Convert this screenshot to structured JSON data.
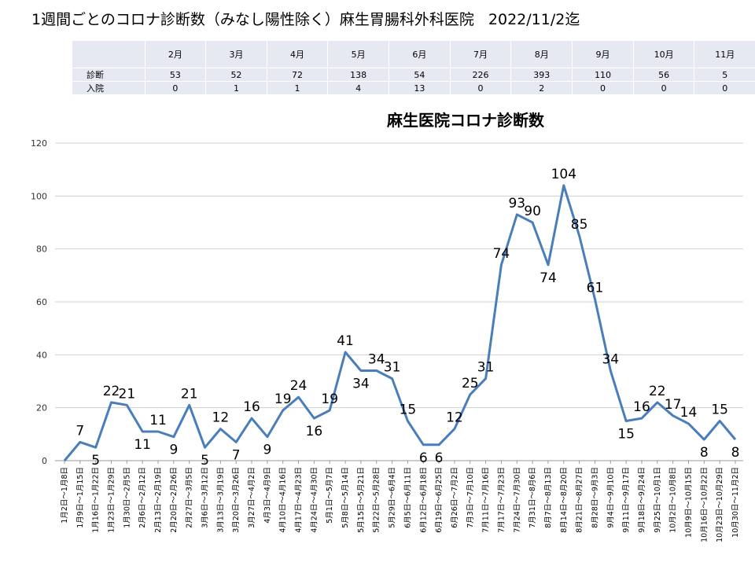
{
  "header": {
    "title": "1週間ごとのコロナ診断数（みなし陽性除く）麻生胃腸科外科医院",
    "date": "2022/11/2迄"
  },
  "summary_table": {
    "months": [
      "2月",
      "3月",
      "4月",
      "5月",
      "6月",
      "7月",
      "8月",
      "9月",
      "10月",
      "11月"
    ],
    "rows": [
      {
        "label": "診断",
        "values": [
          "53",
          "52",
          "72",
          "138",
          "54",
          "226",
          "393",
          "110",
          "56",
          "5"
        ]
      },
      {
        "label": "入院",
        "values": [
          "0",
          "1",
          "1",
          "4",
          "13",
          "0",
          "2",
          "0",
          "0",
          "0"
        ]
      }
    ]
  },
  "chart_data": {
    "type": "line",
    "title": "麻生医院コロナ診断数",
    "ylim": [
      0,
      120
    ],
    "yticks": [
      0,
      20,
      40,
      60,
      80,
      100,
      120
    ],
    "grid": "horizontal",
    "line_color": "#4a7ebb",
    "categories": [
      "1月2日～1月8日",
      "1月9日～1月15日",
      "1月16日～1月22日",
      "1月23日～1月29日",
      "1月30日～2月5日",
      "2月6日～2月12日",
      "2月13日～2月19日",
      "2月20日～2月26日",
      "2月27日～3月5日",
      "3月6日～3月12日",
      "3月13日～3月19日",
      "3月20日～3月26日",
      "3月27日～4月2日",
      "4月3日～4月9日",
      "4月10日～4月16日",
      "4月17日～4月23日",
      "4月24日～4月30日",
      "5月1日～5月7日",
      "5月8日～5月14日",
      "5月15日～5月21日",
      "5月22日～5月28日",
      "5月29日～6月4日",
      "6月5日～6月11日",
      "6月12日～6月18日",
      "6月19日～6月25日",
      "6月26日～7月2日",
      "7月3日～7月10日",
      "7月11日～7月16日",
      "7月17日～7月23日",
      "7月24日～7月30日",
      "7月31日～8月6日",
      "8月7日～8月13日",
      "8月14日～8月20日",
      "8月21日～8月27日",
      "8月28日～9月3日",
      "9月4日～9月10日",
      "9月11日～9月17日",
      "9月18日～9月24日",
      "9月25日～10月1日",
      "10月2日～10月8日",
      "10月9日～10月15日",
      "10月16日～10月22日",
      "10月23日～10月29日",
      "10月30日～11月2日"
    ],
    "values": [
      0,
      7,
      5,
      22,
      21,
      11,
      11,
      9,
      21,
      5,
      12,
      7,
      16,
      9,
      19,
      24,
      16,
      19,
      41,
      34,
      34,
      31,
      15,
      6,
      6,
      12,
      25,
      31,
      74,
      93,
      90,
      74,
      104,
      85,
      61,
      34,
      15,
      16,
      22,
      17,
      14,
      8,
      15,
      8
    ],
    "data_labels": [
      "",
      "7",
      "5",
      "22",
      "21",
      "11",
      "11",
      "9",
      "21",
      "5",
      "12",
      "7",
      "16",
      "9",
      "19",
      "24",
      "16",
      "19",
      "41",
      "34",
      "34",
      "31",
      "15",
      "6",
      "6",
      "12",
      "25",
      "31",
      "74",
      "93",
      "90",
      "74",
      "104",
      "85",
      "61",
      "34",
      "15",
      "16",
      "22",
      "17",
      "14",
      "8",
      "15",
      "8"
    ]
  }
}
